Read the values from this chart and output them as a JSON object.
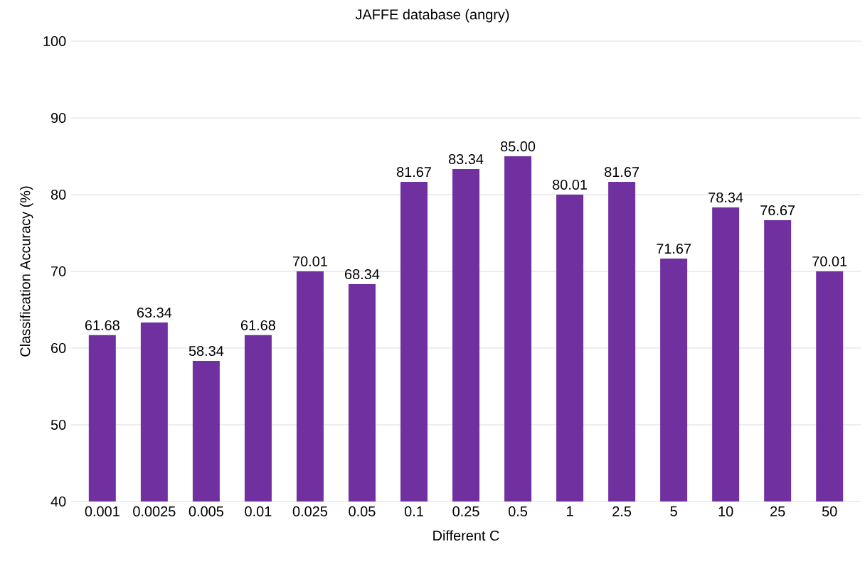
{
  "chart_data": {
    "type": "bar",
    "title": "JAFFE database (angry)",
    "xlabel": "Different C",
    "ylabel": "Classification Accuracy (%)",
    "categories": [
      "0.001",
      "0.0025",
      "0.005",
      "0.01",
      "0.025",
      "0.05",
      "0.1",
      "0.25",
      "0.5",
      "1",
      "2.5",
      "5",
      "10",
      "25",
      "50"
    ],
    "values": [
      61.68,
      63.34,
      58.34,
      61.68,
      70.01,
      68.34,
      81.67,
      83.34,
      85.0,
      80.01,
      81.67,
      71.67,
      78.34,
      76.67,
      70.01
    ],
    "value_labels": [
      "61.68",
      "63.34",
      "58.34",
      "61.68",
      "70.01",
      "68.34",
      "81.67",
      "83.34",
      "85.00",
      "80.01",
      "81.67",
      "71.67",
      "78.34",
      "76.67",
      "70.01"
    ],
    "color": "#7030a0",
    "ylim": [
      40,
      100
    ],
    "yticks": [
      40,
      50,
      60,
      70,
      80,
      90,
      100
    ],
    "grid": "y"
  }
}
